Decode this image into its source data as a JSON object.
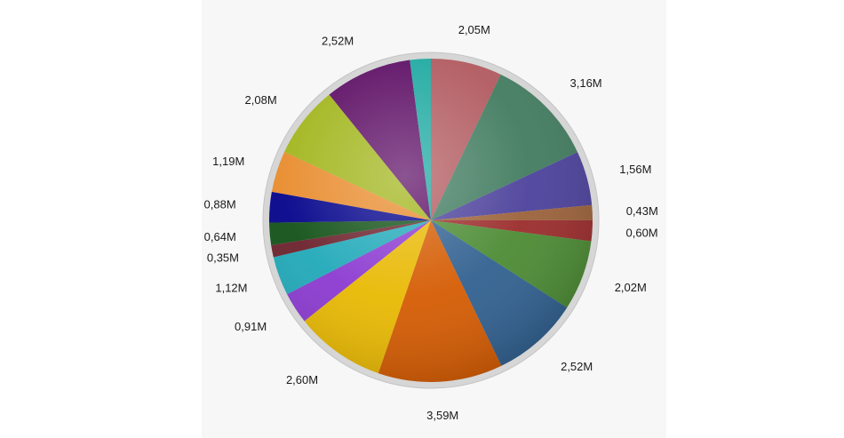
{
  "chart_data": {
    "type": "pie",
    "start_angle_deg": -90,
    "direction": "clockwise",
    "slices": [
      {
        "label": "2,05M",
        "value": 2.05,
        "color": "#b0585d"
      },
      {
        "label": "3,16M",
        "value": 3.16,
        "color": "#3f7a5e"
      },
      {
        "label": "1,56M",
        "value": 1.56,
        "color": "#4a3f9a"
      },
      {
        "label": "0,43M",
        "value": 0.43,
        "color": "#9a6038"
      },
      {
        "label": "0,60M",
        "value": 0.6,
        "color": "#9a2a2a"
      },
      {
        "label": "2,02M",
        "value": 2.02,
        "color": "#4a8a32"
      },
      {
        "label": "2,52M",
        "value": 2.52,
        "color": "#2f5f8f"
      },
      {
        "label": "3,59M",
        "value": 3.59,
        "color": "#d45a00"
      },
      {
        "label": "2,60M",
        "value": 2.6,
        "color": "#e8b800"
      },
      {
        "label": "0,91M",
        "value": 0.91,
        "color": "#8a38d0"
      },
      {
        "label": "1,12M",
        "value": 1.12,
        "color": "#1ea8b8"
      },
      {
        "label": "0,35M",
        "value": 0.35,
        "color": "#6a1f2a"
      },
      {
        "label": "0,64M",
        "value": 0.64,
        "color": "#0f4f14"
      },
      {
        "label": "0,88M",
        "value": 0.88,
        "color": "#00008a"
      },
      {
        "label": "1,19M",
        "value": 1.19,
        "color": "#e88a2a"
      },
      {
        "label": "2,08M",
        "value": 2.08,
        "color": "#a0b418"
      },
      {
        "label": "2,52M",
        "value": 2.52,
        "color": "#5a0a62"
      },
      {
        "label": "",
        "value": 0.6,
        "color": "#1aa8a0"
      }
    ]
  }
}
